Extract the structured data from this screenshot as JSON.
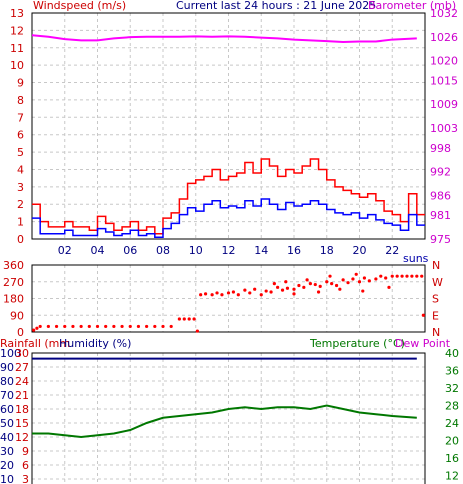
{
  "header": {
    "left_label": "Windspeed (m/s)",
    "center_label": "Current last 24 hours : 21 June 2025",
    "right_label": "Barometer (mb)"
  },
  "middle": {
    "suns_label": "suns",
    "direction_letters": [
      "N",
      "W",
      "S",
      "E",
      "N"
    ]
  },
  "bottom": {
    "left_label_a": "Rainfall (mm",
    "left_label_b": "Humidity (%)",
    "right_label_a": "Temperature (°C)",
    "right_label_b": "Dew Point"
  },
  "colors": {
    "wind_gust": "#ff0000",
    "wind_avg": "#0000ff",
    "barometer": "#ff00ff",
    "direction": "#ff0000",
    "temperature": "#007700",
    "humidity": "#000080",
    "grid": "#c8c8c8",
    "axis_left_red": "#cc0000",
    "axis_right_magenta": "#cc00cc",
    "axis_right_green": "#007700"
  },
  "chart_data": [
    {
      "type": "line",
      "name": "wind-and-barometer",
      "x_ticks": [
        "02",
        "04",
        "06",
        "08",
        "10",
        "12",
        "14",
        "16",
        "18",
        "20",
        "22"
      ],
      "y_left": {
        "label": "Windspeed (m/s)",
        "ticks": [
          0,
          1,
          2,
          3,
          4,
          5,
          6,
          7,
          8,
          9,
          10,
          11,
          12,
          13
        ],
        "lim": [
          0,
          13
        ]
      },
      "y_right": {
        "label": "Barometer (mb)",
        "ticks": [
          975,
          981,
          986,
          992,
          998,
          1003,
          1009,
          1015,
          1020,
          1026,
          1032
        ],
        "lim": [
          975,
          1032
        ]
      },
      "series": [
        {
          "name": "Barometer",
          "axis": "right",
          "x": [
            0,
            1,
            2,
            3,
            4,
            5,
            6,
            7,
            8,
            9,
            10,
            11,
            12,
            13,
            14,
            15,
            16,
            17,
            18,
            19,
            20,
            21,
            22,
            23.5
          ],
          "values": [
            1026.4,
            1026.0,
            1025.4,
            1025.1,
            1025.1,
            1025.6,
            1025.9,
            1026.0,
            1026.0,
            1026.0,
            1026.1,
            1026.0,
            1026.1,
            1026.0,
            1025.8,
            1025.6,
            1025.3,
            1025.1,
            1024.9,
            1024.7,
            1024.8,
            1024.8,
            1025.3,
            1025.6
          ]
        },
        {
          "name": "Gust",
          "axis": "left",
          "x": [
            0,
            0.5,
            1,
            1.5,
            2,
            2.5,
            3,
            3.5,
            4,
            4.5,
            5,
            5.5,
            6,
            6.5,
            7,
            7.5,
            8,
            8.5,
            9,
            9.5,
            10,
            10.5,
            11,
            11.5,
            12,
            12.5,
            13,
            13.5,
            14,
            14.5,
            15,
            15.5,
            16,
            16.5,
            17,
            17.5,
            18,
            18.5,
            19,
            19.5,
            20,
            20.5,
            21,
            21.5,
            22,
            22.5,
            23,
            23.5
          ],
          "values": [
            2,
            1,
            0.7,
            0.7,
            1,
            0.7,
            0.7,
            0.5,
            1.3,
            0.9,
            0.5,
            0.7,
            1,
            0.5,
            0.7,
            0.3,
            1.2,
            1.5,
            2.3,
            3.2,
            3.4,
            3.6,
            4.0,
            3.4,
            3.6,
            3.8,
            4.4,
            3.8,
            4.6,
            4.2,
            3.6,
            4.0,
            3.8,
            4.2,
            4.6,
            4.0,
            3.4,
            3.0,
            2.8,
            2.6,
            2.4,
            2.6,
            2.2,
            1.6,
            1.4,
            1.0,
            2.6,
            1.4
          ]
        },
        {
          "name": "Average",
          "axis": "left",
          "x": [
            0,
            0.5,
            1,
            1.5,
            2,
            2.5,
            3,
            3.5,
            4,
            4.5,
            5,
            5.5,
            6,
            6.5,
            7,
            7.5,
            8,
            8.5,
            9,
            9.5,
            10,
            10.5,
            11,
            11.5,
            12,
            12.5,
            13,
            13.5,
            14,
            14.5,
            15,
            15.5,
            16,
            16.5,
            17,
            17.5,
            18,
            18.5,
            19,
            19.5,
            20,
            20.5,
            21,
            21.5,
            22,
            22.5,
            23,
            23.5
          ],
          "values": [
            1.2,
            0.3,
            0.3,
            0.3,
            0.5,
            0.2,
            0.2,
            0.2,
            0.6,
            0.4,
            0.2,
            0.3,
            0.5,
            0.2,
            0.3,
            0.1,
            0.6,
            0.9,
            1.4,
            1.8,
            1.6,
            2.0,
            2.2,
            1.8,
            1.9,
            1.8,
            2.2,
            1.9,
            2.3,
            2.0,
            1.7,
            2.1,
            1.9,
            2.0,
            2.2,
            2.0,
            1.7,
            1.5,
            1.4,
            1.5,
            1.2,
            1.4,
            1.1,
            0.9,
            0.8,
            0.5,
            1.4,
            0.8
          ]
        }
      ]
    },
    {
      "type": "scatter",
      "name": "wind-direction",
      "y_ticks": [
        0,
        90,
        180,
        270,
        360
      ],
      "ylim": [
        0,
        360
      ],
      "right_labels": [
        "N",
        "W",
        "S",
        "E",
        "N"
      ],
      "points": [
        [
          0.1,
          10
        ],
        [
          0.3,
          20
        ],
        [
          0.5,
          30
        ],
        [
          1,
          30
        ],
        [
          1.5,
          30
        ],
        [
          2,
          30
        ],
        [
          2.5,
          30
        ],
        [
          3,
          30
        ],
        [
          3.5,
          30
        ],
        [
          4,
          30
        ],
        [
          4.5,
          30
        ],
        [
          5,
          30
        ],
        [
          5.5,
          30
        ],
        [
          6,
          30
        ],
        [
          6.5,
          30
        ],
        [
          7,
          30
        ],
        [
          7.5,
          30
        ],
        [
          8,
          30
        ],
        [
          8.5,
          30
        ],
        [
          9.0,
          70
        ],
        [
          9.3,
          70
        ],
        [
          9.6,
          70
        ],
        [
          9.9,
          70
        ],
        [
          10.1,
          5
        ],
        [
          10.3,
          200
        ],
        [
          10.6,
          205
        ],
        [
          11,
          200
        ],
        [
          11.3,
          210
        ],
        [
          11.6,
          200
        ],
        [
          12,
          210
        ],
        [
          12.3,
          215
        ],
        [
          12.6,
          200
        ],
        [
          13,
          225
        ],
        [
          13.3,
          210
        ],
        [
          13.6,
          230
        ],
        [
          14,
          200
        ],
        [
          14.3,
          220
        ],
        [
          14.6,
          215
        ],
        [
          15,
          240
        ],
        [
          15.3,
          225
        ],
        [
          15.6,
          235
        ],
        [
          16,
          230
        ],
        [
          16.3,
          250
        ],
        [
          16.6,
          240
        ],
        [
          17,
          260
        ],
        [
          17.3,
          255
        ],
        [
          17.6,
          245
        ],
        [
          18,
          270
        ],
        [
          18.3,
          260
        ],
        [
          18.6,
          250
        ],
        [
          19,
          280
        ],
        [
          19.3,
          265
        ],
        [
          19.6,
          285
        ],
        [
          20,
          270
        ],
        [
          20.3,
          290
        ],
        [
          20.6,
          275
        ],
        [
          21,
          285
        ],
        [
          21.3,
          300
        ],
        [
          21.6,
          290
        ],
        [
          22,
          300
        ],
        [
          15.5,
          270
        ],
        [
          16.8,
          280
        ],
        [
          18.2,
          300
        ],
        [
          19.8,
          310
        ],
        [
          14.8,
          260
        ],
        [
          16,
          205
        ],
        [
          17.5,
          215
        ],
        [
          18.8,
          230
        ],
        [
          20.2,
          220
        ],
        [
          21.8,
          240
        ],
        [
          22.3,
          300
        ],
        [
          22.6,
          300
        ],
        [
          22.9,
          300
        ],
        [
          23.2,
          300
        ],
        [
          23.5,
          300
        ],
        [
          23.8,
          300
        ],
        [
          23.9,
          90
        ]
      ]
    },
    {
      "type": "line",
      "name": "temperature-humidity",
      "y_left_a": {
        "ticks": [
          0,
          10,
          20,
          30,
          40,
          50,
          60,
          70,
          80,
          90,
          100
        ],
        "lim": [
          0,
          100
        ]
      },
      "y_left_b": {
        "ticks": [
          0,
          3,
          6,
          9,
          12,
          15,
          18,
          21,
          24,
          27,
          30
        ],
        "lim": [
          0,
          30
        ]
      },
      "y_right": {
        "ticks": [
          8,
          12,
          16,
          20,
          24,
          28,
          32,
          36,
          40
        ],
        "lim": [
          8,
          40
        ]
      },
      "series": [
        {
          "name": "Temperature",
          "axis": "right",
          "x": [
            0,
            1,
            2,
            3,
            4,
            5,
            6,
            7,
            8,
            9,
            10,
            11,
            12,
            13,
            14,
            15,
            16,
            17,
            18,
            19,
            20,
            21,
            22,
            23.5
          ],
          "values": [
            21.6,
            21.6,
            21.2,
            20.8,
            21.2,
            21.6,
            22.4,
            24.0,
            25.2,
            25.6,
            26.0,
            26.4,
            27.2,
            27.6,
            27.2,
            27.6,
            27.6,
            27.2,
            28.0,
            27.2,
            26.4,
            26.0,
            25.6,
            25.2
          ]
        },
        {
          "name": "Humidity",
          "axis": "left",
          "x": [
            0,
            23.5
          ],
          "values": [
            96,
            96
          ]
        }
      ]
    }
  ]
}
